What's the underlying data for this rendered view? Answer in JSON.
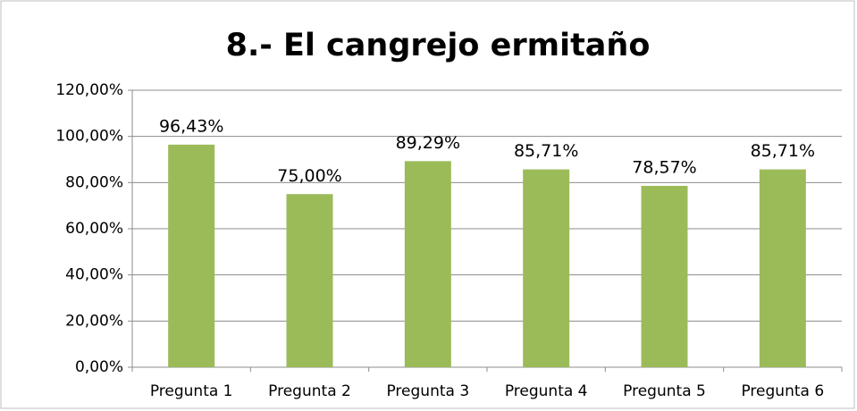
{
  "chart_data": {
    "type": "bar",
    "title": "8.- El cangrejo ermitaño",
    "categories": [
      "Pregunta 1",
      "Pregunta 2",
      "Pregunta 3",
      "Pregunta 4",
      "Pregunta 5",
      "Pregunta 6"
    ],
    "values": [
      96.43,
      75,
      89.29,
      85.71,
      78.57,
      85.71
    ],
    "value_labels": [
      "96,43%",
      "75,00%",
      "89,29%",
      "85,71%",
      "78,57%",
      "85,71%"
    ],
    "color": "#9bbb59",
    "ylim": [
      0,
      120
    ],
    "yticks": [
      {
        "value": 0,
        "label": "0,00%"
      },
      {
        "value": 20,
        "label": "20,00%"
      },
      {
        "value": 40,
        "label": "40,00%"
      },
      {
        "value": 60,
        "label": "60,00%"
      },
      {
        "value": 80,
        "label": "80,00%"
      },
      {
        "value": 100,
        "label": "100,00%"
      },
      {
        "value": 120,
        "label": "120,00%"
      }
    ],
    "grid": true
  }
}
